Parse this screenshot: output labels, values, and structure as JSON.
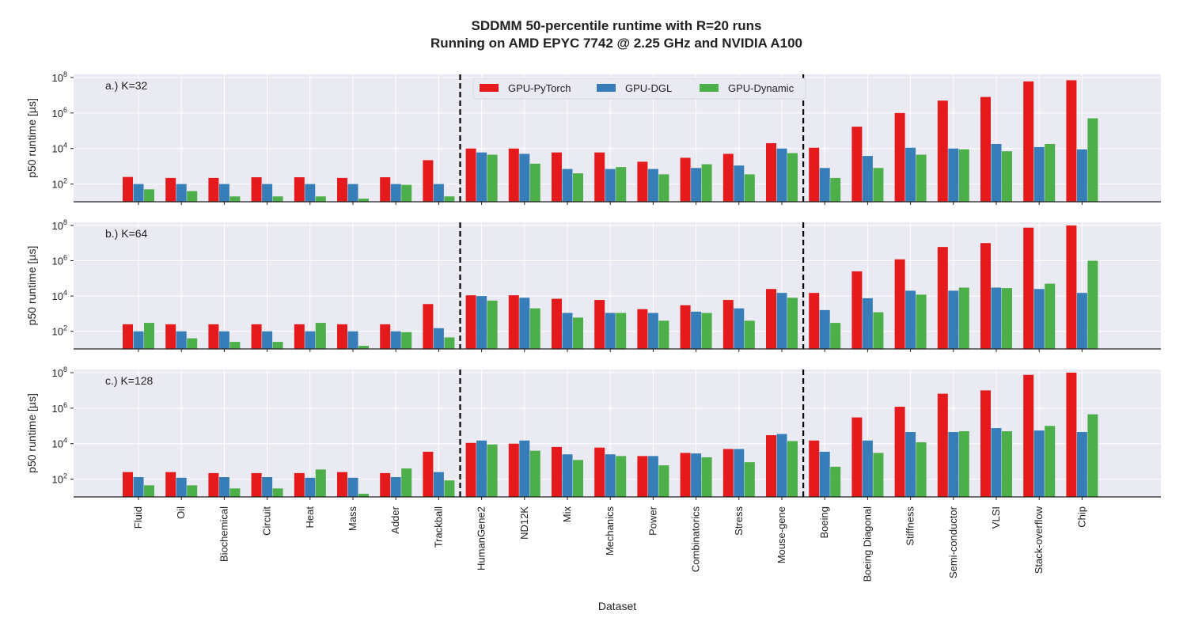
{
  "title": {
    "line1": "SDDMM 50-percentile runtime with R=20 runs",
    "line2": "Running on AMD EPYC 7742 @ 2.25 GHz and NVIDIA A100"
  },
  "colors": {
    "GPU-PyTorch": "#e41a1c",
    "GPU-DGL": "#377eb8",
    "GPU-Dynamic": "#4daf4a",
    "panel_bg": "#eaeaf2",
    "grid": "#ffffff"
  },
  "chart_data": {
    "type": "bar",
    "xlabel": "Dataset",
    "ylabel": "p50 runtime [µs]",
    "yscale": "log",
    "ylim": [
      10,
      150000000
    ],
    "yticks": [
      100,
      10000,
      1000000,
      100000000
    ],
    "ytick_labels": [
      [
        "10",
        "2"
      ],
      [
        "10",
        "4"
      ],
      [
        "10",
        "6"
      ],
      [
        "10",
        "8"
      ]
    ],
    "legend_position": "top-center (first panel)",
    "grid": true,
    "group_separators_after": [
      "Trackball",
      "Mouse-gene"
    ],
    "categories": [
      "Fluid",
      "Oil",
      "Biochemical",
      "Circuit",
      "Heat",
      "Mass",
      "Adder",
      "Trackball",
      "HumanGene2",
      "ND12K",
      "Mix",
      "Mechanics",
      "Power",
      "Combinatorics",
      "Stress",
      "Mouse-gene",
      "Boeing",
      "Boeing Diagonal",
      "Stiffness",
      "Semi-conductor",
      "VLSI",
      "Stack-overflow",
      "Chip"
    ],
    "series_names": [
      "GPU-PyTorch",
      "GPU-DGL",
      "GPU-Dynamic"
    ],
    "panels": [
      {
        "label": "a.) K=32",
        "series": [
          {
            "name": "GPU-PyTorch",
            "values": [
              250,
              220,
              220,
              240,
              240,
              220,
              240,
              2200,
              10000,
              10000,
              6000,
              6000,
              1800,
              3000,
              5000,
              20000,
              11000,
              170000,
              1000000,
              5000000,
              8000000,
              60000000,
              70000000
            ]
          },
          {
            "name": "GPU-DGL",
            "values": [
              100,
              100,
              100,
              100,
              100,
              100,
              100,
              100,
              6000,
              5000,
              700,
              700,
              700,
              800,
              1100,
              10000,
              800,
              3800,
              11000,
              10000,
              18000,
              12000,
              9000
            ]
          },
          {
            "name": "GPU-Dynamic",
            "values": [
              50,
              40,
              20,
              20,
              20,
              15,
              90,
              20,
              4500,
              1400,
              400,
              900,
              350,
              1300,
              350,
              5500,
              220,
              800,
              4500,
              9000,
              7000,
              18000,
              500000
            ]
          }
        ]
      },
      {
        "label": "b.) K=64",
        "series": [
          {
            "name": "GPU-PyTorch",
            "values": [
              250,
              250,
              250,
              250,
              250,
              250,
              250,
              3500,
              11000,
              11000,
              7000,
              6000,
              1800,
              3000,
              6000,
              25000,
              15000,
              250000,
              1200000,
              6000000,
              10000000,
              75000000,
              100000000
            ]
          },
          {
            "name": "GPU-DGL",
            "values": [
              100,
              100,
              100,
              100,
              100,
              100,
              100,
              150,
              10000,
              8000,
              1100,
              1100,
              1100,
              1300,
              2000,
              15000,
              1600,
              7500,
              20000,
              20000,
              30000,
              25000,
              15000
            ]
          },
          {
            "name": "GPU-Dynamic",
            "values": [
              300,
              40,
              25,
              25,
              300,
              15,
              90,
              45,
              5500,
              2000,
              600,
              1100,
              400,
              1100,
              400,
              8000,
              300,
              1200,
              12000,
              30000,
              28000,
              50000,
              1000000
            ]
          }
        ]
      },
      {
        "label": "c.) K=128",
        "series": [
          {
            "name": "GPU-PyTorch",
            "values": [
              250,
              250,
              220,
              220,
              220,
              250,
              220,
              3500,
              11000,
              10000,
              6500,
              6000,
              2000,
              3000,
              5000,
              30000,
              15000,
              300000,
              1200000,
              6500000,
              10000000,
              75000000,
              100000000
            ]
          },
          {
            "name": "GPU-DGL",
            "values": [
              130,
              120,
              130,
              130,
              120,
              120,
              130,
              250,
              15000,
              15000,
              2500,
              2500,
              2000,
              2800,
              5000,
              35000,
              3500,
              15000,
              45000,
              45000,
              75000,
              55000,
              45000
            ]
          },
          {
            "name": "GPU-Dynamic",
            "values": [
              45,
              45,
              30,
              30,
              350,
              15,
              400,
              85,
              9000,
              4000,
              1200,
              2000,
              600,
              1700,
              900,
              14000,
              500,
              3000,
              12000,
              50000,
              50000,
              100000,
              450000
            ]
          }
        ]
      }
    ]
  }
}
